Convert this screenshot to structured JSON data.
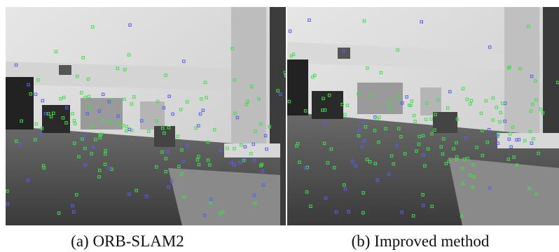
{
  "figure": {
    "panels": [
      {
        "caption": "(a) ORB-SLAM2"
      },
      {
        "caption": "(b) Improved method"
      }
    ]
  }
}
